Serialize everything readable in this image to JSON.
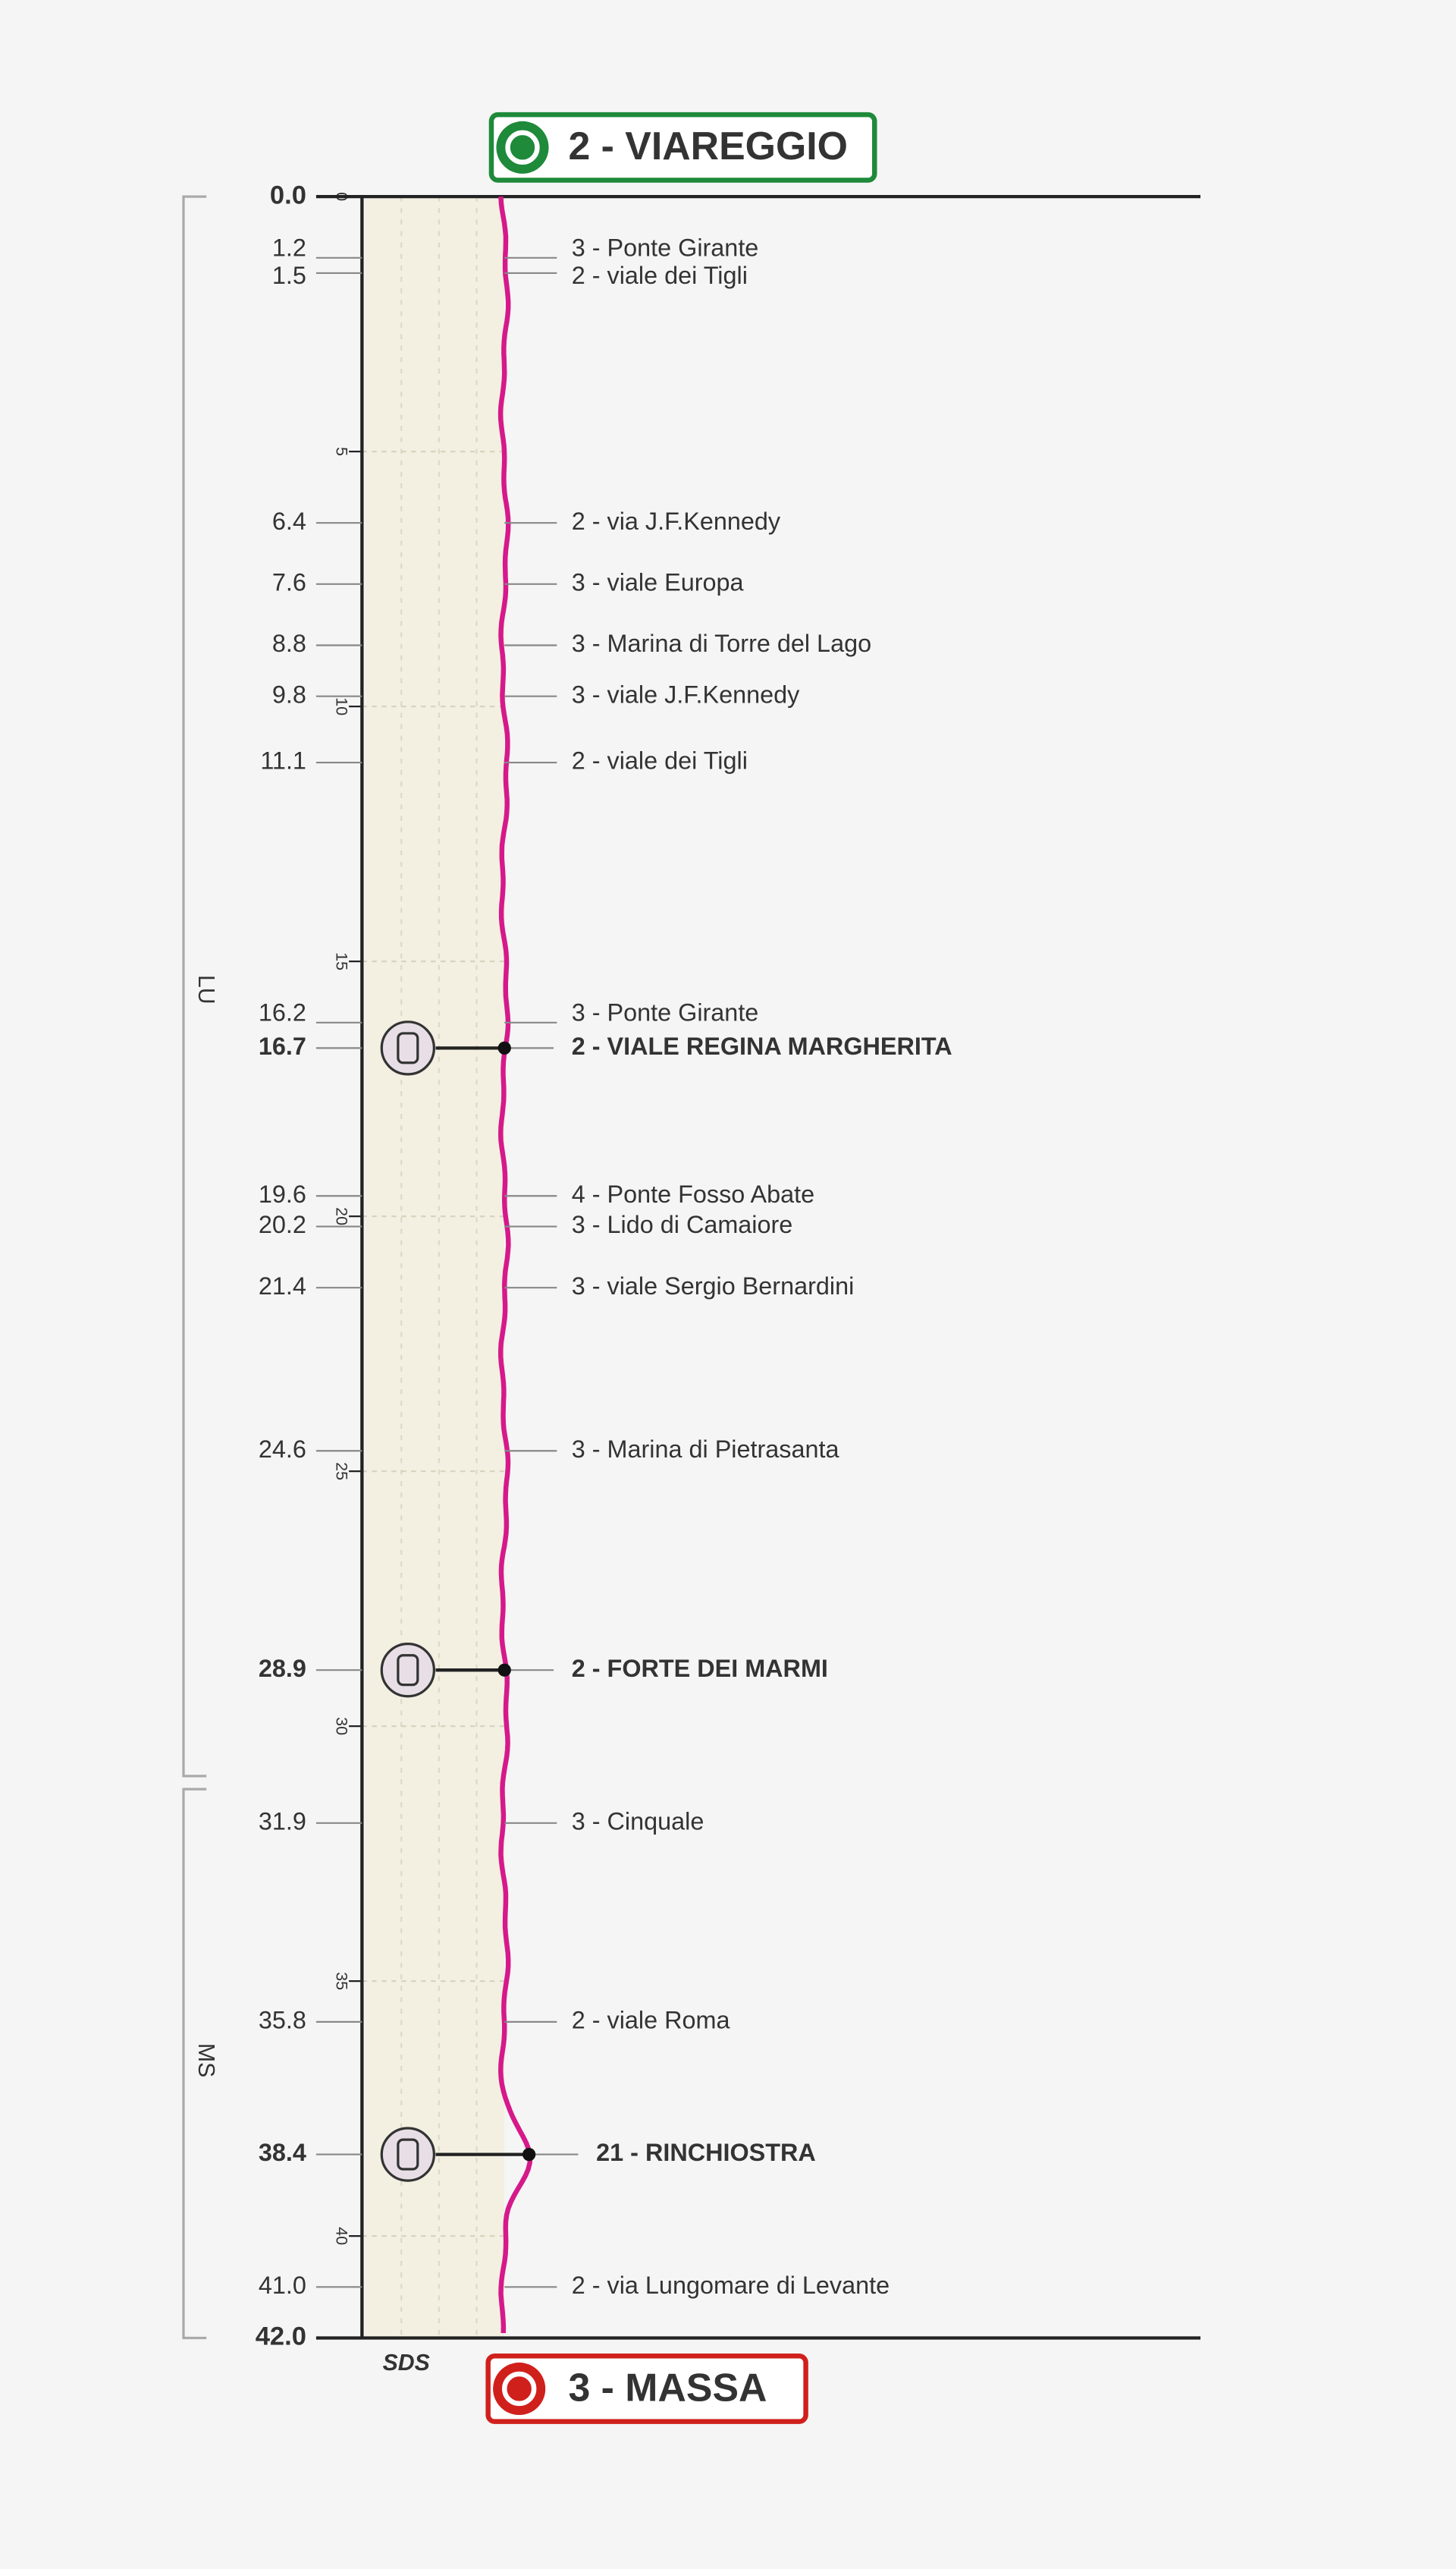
{
  "start": {
    "label": "2 - VIAREGGIO",
    "km": "0.0"
  },
  "finish": {
    "label": "3 - MASSA",
    "km": "42.0"
  },
  "axis_ticks": [
    0,
    5,
    10,
    15,
    20,
    25,
    30,
    35,
    40
  ],
  "provinces": [
    "LU",
    "MS"
  ],
  "strip_label": "SDS",
  "waypoints": [
    {
      "km": "1.2",
      "label": "3 - Ponte Girante"
    },
    {
      "km": "1.5",
      "label": "2 - viale dei Tigli"
    },
    {
      "km": "6.4",
      "label": "2 - via J.F.Kennedy"
    },
    {
      "km": "7.6",
      "label": "3 - viale Europa"
    },
    {
      "km": "8.8",
      "label": "3 - Marina di Torre del Lago"
    },
    {
      "km": "9.8",
      "label": "3 - viale J.F.Kennedy"
    },
    {
      "km": "11.1",
      "label": "2 - viale dei Tigli"
    },
    {
      "km": "16.2",
      "label": "3 - Ponte Girante"
    },
    {
      "km": "16.7",
      "label": "2 - VIALE REGINA MARGHERITA",
      "sprint": true
    },
    {
      "km": "19.6",
      "label": "4 - Ponte Fosso Abate"
    },
    {
      "km": "20.2",
      "label": "3 - Lido di Camaiore"
    },
    {
      "km": "21.4",
      "label": "3 - viale Sergio Bernardini"
    },
    {
      "km": "24.6",
      "label": "3 - Marina di Pietrasanta"
    },
    {
      "km": "28.9",
      "label": "2 - FORTE DEI MARMI",
      "sprint": true
    },
    {
      "km": "31.9",
      "label": "3 - Cinquale"
    },
    {
      "km": "35.8",
      "label": "2 - viale Roma"
    },
    {
      "km": "38.4",
      "label": "21 - RINCHIOSTRA",
      "sprint": true,
      "detour": true
    },
    {
      "km": "41.0",
      "label": "2 - via Lungomare di Levante"
    }
  ]
}
